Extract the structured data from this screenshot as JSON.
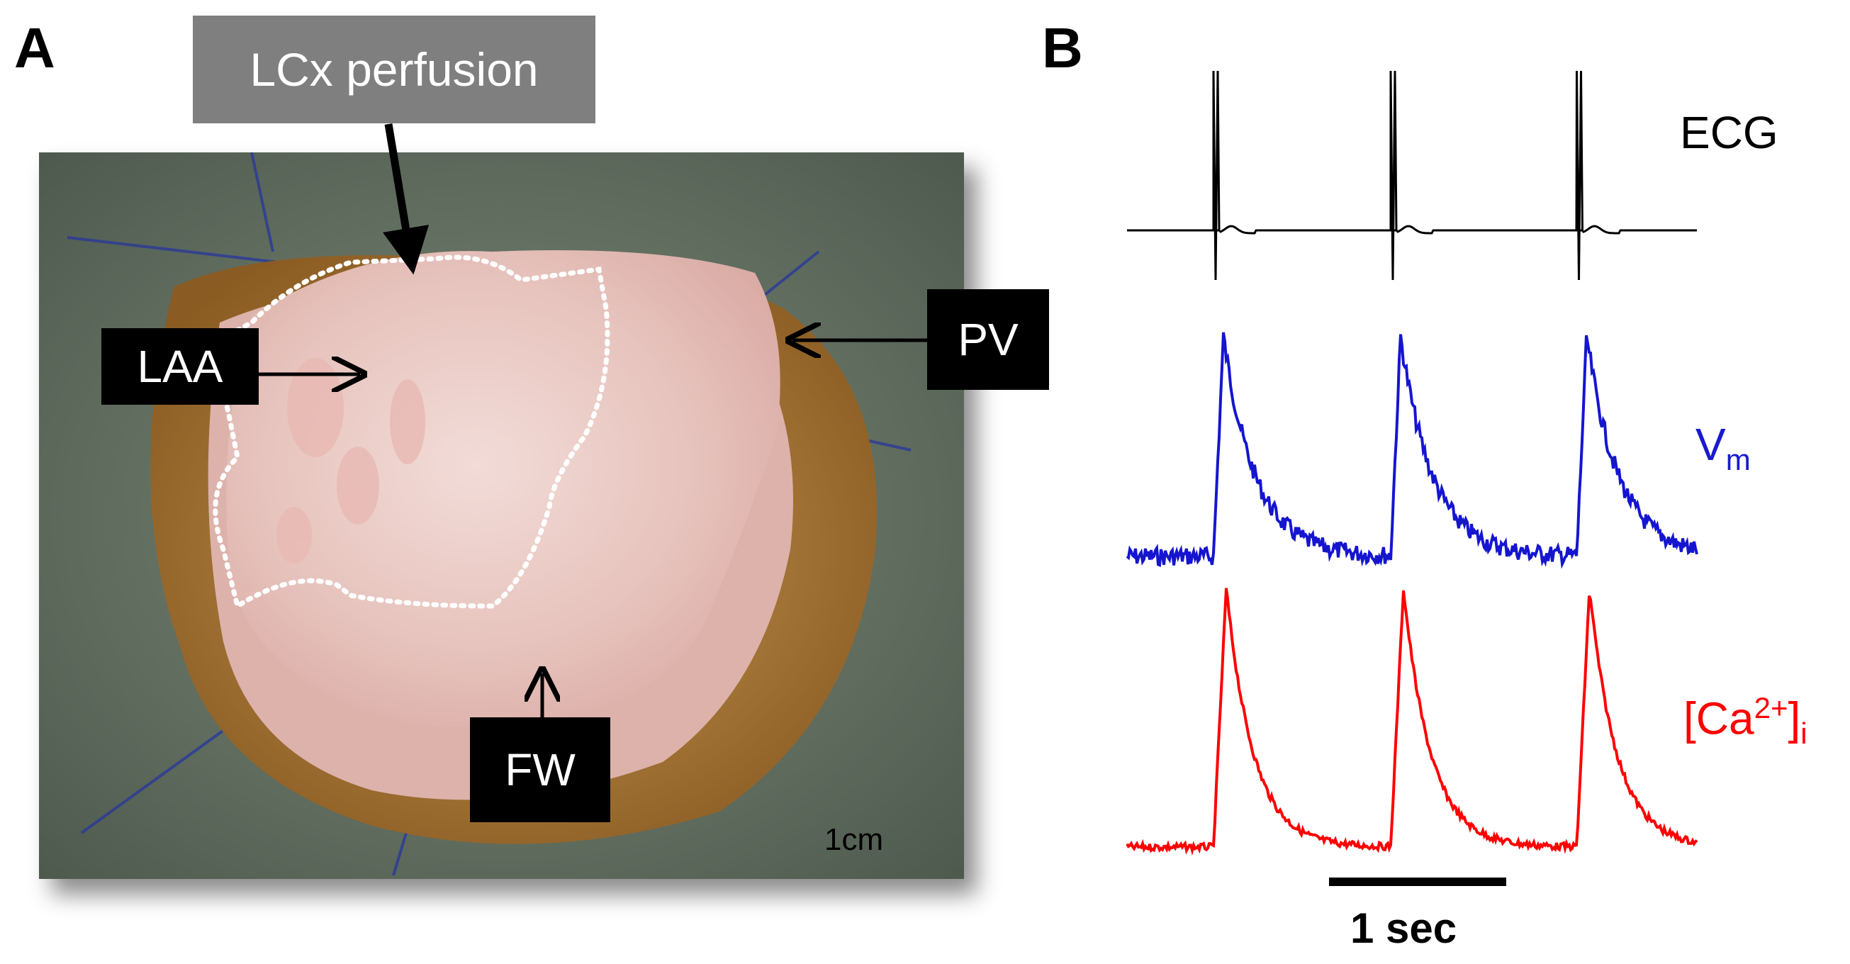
{
  "figure": {
    "panel_a": {
      "letter": "A",
      "labels": {
        "lcx": "LCx perfusion",
        "laa": "LAA",
        "pv": "PV",
        "fw": "FW"
      },
      "scale_bar_text": "1cm"
    },
    "panel_b": {
      "letter": "B",
      "traces": {
        "ecg": "ECG",
        "vm_main": "V",
        "vm_sub": "m",
        "ca_open": "[Ca",
        "ca_sup": "2+",
        "ca_close": "]",
        "ca_sub": "i"
      },
      "time_scale_text": "1 sec"
    }
  },
  "colors": {
    "ecg": "#000000",
    "vm": "#0000cc",
    "ca": "#ff0000",
    "tissue": "#e8c9c4",
    "outline": "#ffffff"
  },
  "chart_data": {
    "type": "line",
    "title": "",
    "x_unit": "sec",
    "time_scale_sec": 1,
    "beat_times_sec": [
      0.0,
      1.0,
      2.05
    ],
    "series": [
      {
        "name": "ECG",
        "color": "#000000",
        "shape": "spike"
      },
      {
        "name": "Vm",
        "color": "#0000cc",
        "shape": "action_potential"
      },
      {
        "name": "[Ca2+]i",
        "color": "#ff0000",
        "shape": "calcium_transient"
      }
    ]
  }
}
